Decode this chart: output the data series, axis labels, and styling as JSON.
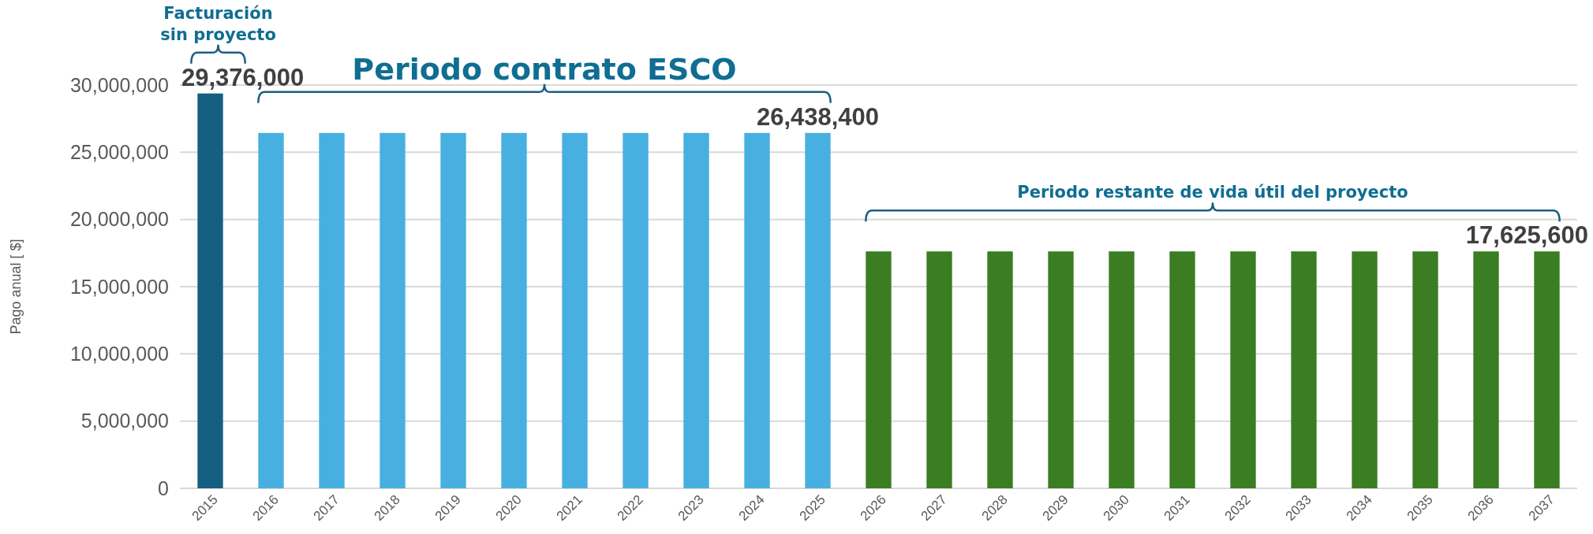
{
  "chart_data": {
    "type": "bar",
    "categories": [
      "2015",
      "2016",
      "2017",
      "2018",
      "2019",
      "2020",
      "2021",
      "2022",
      "2023",
      "2024",
      "2025",
      "2026",
      "2027",
      "2028",
      "2029",
      "2030",
      "2031",
      "2032",
      "2033",
      "2034",
      "2035",
      "2036",
      "2037"
    ],
    "values": [
      29376000,
      26438400,
      26438400,
      26438400,
      26438400,
      26438400,
      26438400,
      26438400,
      26438400,
      26438400,
      26438400,
      17625600,
      17625600,
      17625600,
      17625600,
      17625600,
      17625600,
      17625600,
      17625600,
      17625600,
      17625600,
      17625600,
      17625600
    ],
    "colors": [
      "#156082",
      "#47b0e0",
      "#47b0e0",
      "#47b0e0",
      "#47b0e0",
      "#47b0e0",
      "#47b0e0",
      "#47b0e0",
      "#47b0e0",
      "#47b0e0",
      "#47b0e0",
      "#3b7d23",
      "#3b7d23",
      "#3b7d23",
      "#3b7d23",
      "#3b7d23",
      "#3b7d23",
      "#3b7d23",
      "#3b7d23",
      "#3b7d23",
      "#3b7d23",
      "#3b7d23",
      "#3b7d23"
    ],
    "value_labels": [
      "29,376,000",
      null,
      null,
      null,
      null,
      null,
      null,
      null,
      null,
      null,
      "26,438,400",
      null,
      null,
      null,
      null,
      null,
      null,
      null,
      null,
      null,
      null,
      null,
      "17,625,600"
    ],
    "ylabel": "Pago anual [ $]",
    "ylim": [
      0,
      30000000
    ],
    "yticks": [
      {
        "value": 0,
        "label": "0"
      },
      {
        "value": 5000000,
        "label": "5,000,000"
      },
      {
        "value": 10000000,
        "label": "10,000,000"
      },
      {
        "value": 15000000,
        "label": "15,000,000"
      },
      {
        "value": 20000000,
        "label": "20,000,000"
      },
      {
        "value": 25000000,
        "label": "25,000,000"
      },
      {
        "value": 30000000,
        "label": "30,000,000"
      }
    ],
    "grid": "y",
    "annotations": [
      "Facturación sin proyecto",
      "Periodo contrato ESCO",
      "Periodo restante de vida útil del proyecto"
    ]
  }
}
